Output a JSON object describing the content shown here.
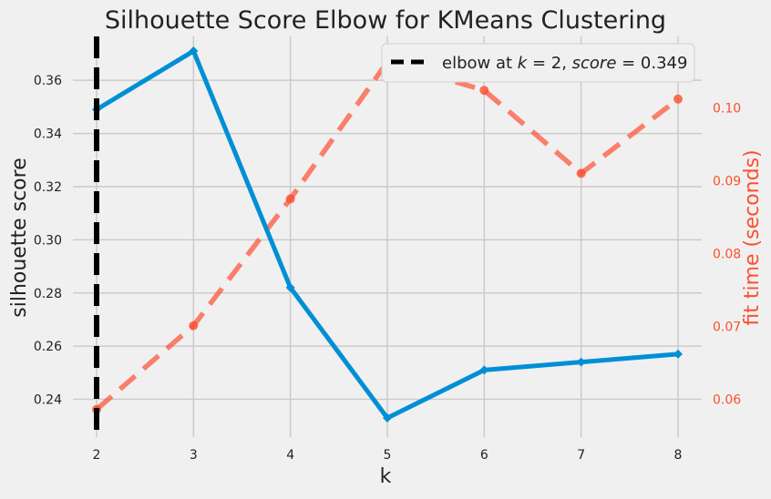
{
  "chart_data": {
    "type": "line",
    "title": "Silhouette Score Elbow for KMeans Clustering",
    "xlabel": "k",
    "ylabel": "silhouette score",
    "ylabel_right": "fit time (seconds)",
    "x": [
      2,
      3,
      4,
      5,
      6,
      7,
      8
    ],
    "xticks": [
      "2",
      "3",
      "4",
      "5",
      "6",
      "7",
      "8"
    ],
    "xlim": [
      2,
      8
    ],
    "ylim": [
      0.2258,
      0.3765
    ],
    "yticks": [
      "0.24",
      "0.26",
      "0.28",
      "0.30",
      "0.32",
      "0.34",
      "0.36"
    ],
    "ylim_right": [
      0.0548,
      0.1098
    ],
    "yticks_right": [
      "0.06",
      "0.07",
      "0.08",
      "0.09",
      "0.10"
    ],
    "grid": true,
    "series": [
      {
        "role": "score",
        "values": [
          0.349,
          0.371,
          0.282,
          0.233,
          0.251,
          0.254,
          0.257
        ],
        "color": "#008fd5",
        "marker": "diamond",
        "axis": "left"
      },
      {
        "role": "fit-time",
        "values": [
          0.0586,
          0.0701,
          0.0875,
          0.1063,
          0.1024,
          0.091,
          0.1012
        ],
        "color": "#fc4f30",
        "marker": "circle",
        "axis": "right",
        "dashed": true
      }
    ],
    "elbow": {
      "k": 2,
      "color": "#000000",
      "legend_label": "elbow at $k=2$, $score=0.349$",
      "legend_placement": "top-right"
    }
  }
}
